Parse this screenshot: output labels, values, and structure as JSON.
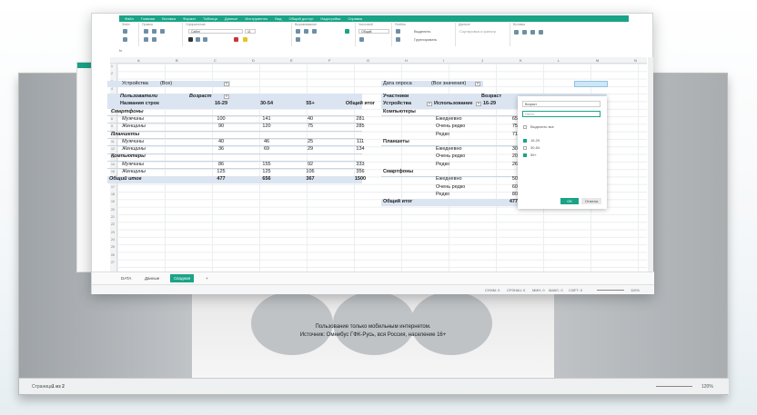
{
  "colors": {
    "accent": "#1aa387",
    "pivot_header": "#dbe5f1"
  },
  "document": {
    "caption_line1": "Пользование только мобильным интернетом.",
    "caption_line2": "Источник: Омнибус ГФК-Русь, вся Россия, население 16+",
    "page_status_label": "Страница",
    "page_status_value": "1 из 2",
    "zoom": "120%"
  },
  "menu": [
    "Файл",
    "Главная",
    "Вставка",
    "Формат",
    "Таблица",
    "Данные",
    "Инструменты",
    "Вид",
    "Общий доступ",
    "Надстройки",
    "Справка"
  ],
  "ribbon": {
    "group_file": "Файл",
    "group_edit": "Правка",
    "group_format": "Оформление",
    "group_align": "Выравнивание",
    "group_number": "Числовой",
    "group_cells": "Ячейки",
    "group_data": "Данные",
    "group_insert": "Вставка",
    "font": "Calibri",
    "size": "11",
    "number_format": "Общий",
    "select_label": "Выделить",
    "group_label": "Группировать",
    "sort_filter": "Сортировка и фильтр",
    "fx": "fx"
  },
  "columns": [
    "A",
    "B",
    "C",
    "D",
    "E",
    "F",
    "G",
    "H",
    "I",
    "J",
    "K",
    "L",
    "M",
    "N"
  ],
  "left_pivot": {
    "filter_label": "Устройства",
    "filter_value": "(Все)",
    "header_users": "Пользователи",
    "header_age": "Возраст",
    "header_rows": "Названия строк",
    "age_columns": [
      "16-29",
      "30-54",
      "55+",
      "Общий итог"
    ],
    "rows": [
      {
        "label": "Смартфоны",
        "group": true
      },
      {
        "label": "Мужчины",
        "values": [
          "100",
          "141",
          "40",
          "281"
        ]
      },
      {
        "label": "Женщины",
        "values": [
          "90",
          "120",
          "75",
          "285"
        ]
      },
      {
        "label": "Планшеты",
        "group": true
      },
      {
        "label": "Мужчины",
        "values": [
          "40",
          "46",
          "25",
          "111"
        ]
      },
      {
        "label": "Женщины",
        "values": [
          "36",
          "69",
          "29",
          "134"
        ]
      },
      {
        "label": "Компьютеры",
        "group": true
      },
      {
        "label": "Мужчины",
        "values": [
          "86",
          "155",
          "92",
          "333"
        ]
      },
      {
        "label": "Женщины",
        "values": [
          "125",
          "125",
          "106",
          "356"
        ]
      }
    ],
    "total_label": "Общий итог",
    "totals": [
      "477",
      "656",
      "367",
      "1500"
    ]
  },
  "right_pivot": {
    "filter_label": "Дата опроса",
    "filter_value": "(Все значения)",
    "header_participants": "Участники",
    "header_age": "Возраст",
    "header_devices": "Устройства",
    "header_usage": "Использование",
    "age_first": "16-29",
    "total_header": "итог",
    "rows": [
      {
        "label": "Компьютеры",
        "group": true
      },
      {
        "usage": "Ежедневно",
        "v": "65",
        "t": "232"
      },
      {
        "usage": "Очень редко",
        "v": "75",
        "t": "210"
      },
      {
        "usage": "Редко",
        "v": "71",
        "t": "247"
      },
      {
        "label": "Планшеты",
        "group": true
      },
      {
        "usage": "Ежедневно",
        "v": "30",
        "t": "105"
      },
      {
        "usage": "Очень редко",
        "v": "20",
        "t": "50"
      },
      {
        "usage": "Редко",
        "v": "26",
        "t": "90"
      },
      {
        "label": "Смартфоны",
        "group": true
      },
      {
        "usage": "Ежедневно",
        "v": "50",
        "t": "169"
      },
      {
        "usage": "Очень редко",
        "v": "60",
        "t": "165"
      },
      {
        "usage": "Редко",
        "v": "80",
        "t": "232"
      }
    ],
    "total_label": "Общий итог",
    "total_v": "477",
    "total_t": "1500"
  },
  "filter_popup": {
    "field": "Возраст",
    "search_placeholder": "Найти",
    "select_all": "Выделить все",
    "options": [
      {
        "label": "16-29",
        "checked": true
      },
      {
        "label": "30-54",
        "checked": false
      },
      {
        "label": "55+",
        "checked": true
      }
    ],
    "ok": "ОК",
    "cancel": "Отмена"
  },
  "sheets": [
    {
      "label": "DATA",
      "active": false
    },
    {
      "label": "Данные",
      "active": false
    },
    {
      "label": "Сводная",
      "active": true
    }
  ],
  "add_sheet": "+",
  "status": {
    "sum": "СУММ: 0",
    "avg": "СРЗНАЧ: 0",
    "min": "МИН: 0",
    "max": "МАКС: 0",
    "count": "СЧЁТ: 0",
    "zoom": "110%"
  }
}
